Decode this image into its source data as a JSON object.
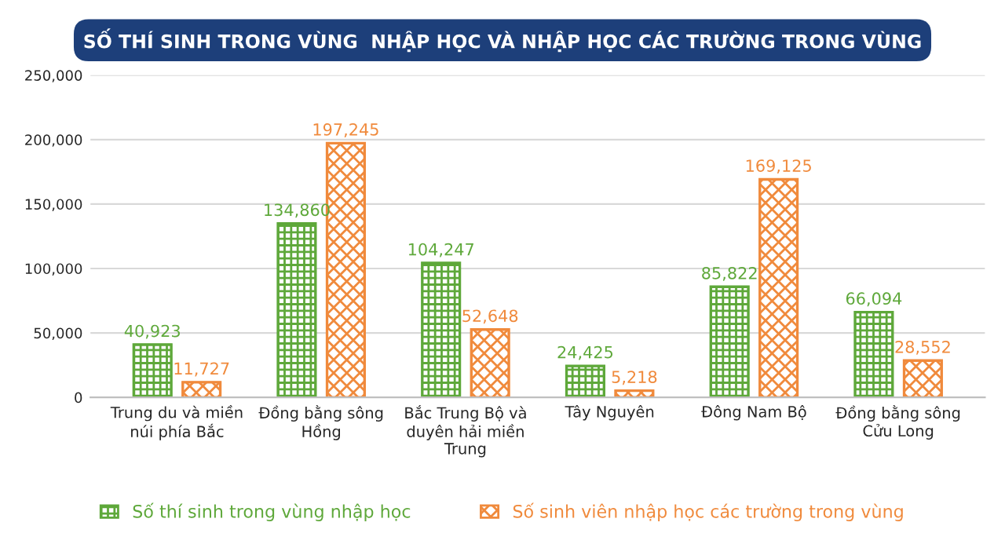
{
  "chart_data": {
    "type": "bar",
    "title": "SỐ THÍ SINH TRONG VÙNG  NHẬP HỌC VÀ NHẬP HỌC CÁC TRƯỜNG TRONG VÙNG",
    "categories": [
      "Trung du và miền\nnúi phía Bắc",
      "Đồng bằng sông\nHồng",
      "Bắc Trung Bộ và\nduyên hải miền\nTrung",
      "Tây Nguyên",
      "Đông Nam Bộ",
      "Đồng bằng sông\nCửu Long"
    ],
    "series": [
      {
        "name": "Số thí sinh trong vùng nhập học",
        "color": "#5ea83a",
        "values": [
          40923,
          134860,
          104247,
          24425,
          85822,
          66094
        ],
        "value_labels": [
          "40,923",
          "134,860",
          "104,247",
          "24,425",
          "85,822",
          "66,094"
        ]
      },
      {
        "name": "Số sinh viên nhập học các trường trong vùng",
        "color": "#f08a3c",
        "values": [
          11727,
          197245,
          52648,
          5218,
          169125,
          28552
        ],
        "value_labels": [
          "11,727",
          "197,245",
          "52,648",
          "5,218",
          "169,125",
          "28,552"
        ]
      }
    ],
    "ylim": [
      0,
      250000
    ],
    "yticks": [
      0,
      {
        "value": 50000,
        "label": "50,000"
      },
      {
        "value": 100000,
        "label": "100,000"
      },
      {
        "value": 150000,
        "label": "150,000"
      },
      {
        "value": 200000,
        "label": "200,000"
      },
      {
        "value": 250000,
        "label": "250,000"
      }
    ],
    "grid": "y",
    "legend": "bottom"
  }
}
